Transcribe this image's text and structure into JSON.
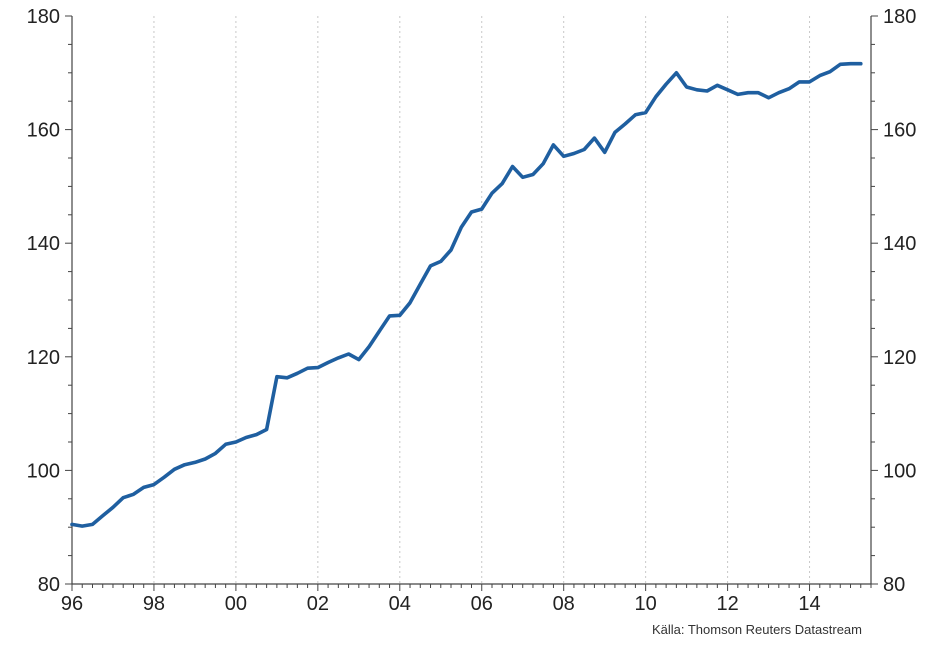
{
  "source": "Källa: Thomson Reuters Datastream",
  "chart_data": {
    "type": "line",
    "title": "",
    "xlabel": "",
    "ylabel": "",
    "xlim": [
      1996,
      2015.5
    ],
    "ylim": [
      80,
      180
    ],
    "y_ticks": [
      80,
      100,
      120,
      140,
      160,
      180
    ],
    "y_tick_labels": [
      "80",
      "100",
      "120",
      "140",
      "160",
      "180"
    ],
    "x_ticks": [
      1996,
      1998,
      2000,
      2002,
      2004,
      2006,
      2008,
      2010,
      2012,
      2014
    ],
    "x_tick_labels": [
      "96",
      "98",
      "00",
      "02",
      "04",
      "06",
      "08",
      "10",
      "12",
      "14"
    ],
    "grid": "vertical dotted",
    "axes": "left and right y-axes mirrored",
    "colors": {
      "line": "#1f5fa0",
      "grid": "#c8c8c8",
      "axis": "#444444"
    },
    "series": [
      {
        "x": [
          1996.0,
          1996.25,
          1996.5,
          1996.75,
          1997.0,
          1997.25,
          1997.5,
          1997.75,
          1998.0,
          1998.25,
          1998.5,
          1998.75,
          1999.0,
          1999.25,
          1999.5,
          1999.75,
          2000.0,
          2000.25,
          2000.5,
          2000.75,
          2001.0,
          2001.25,
          2001.5,
          2001.75,
          2002.0,
          2002.25,
          2002.5,
          2002.75,
          2003.0,
          2003.25,
          2003.5,
          2003.75,
          2004.0,
          2004.25,
          2004.5,
          2004.75,
          2005.0,
          2005.25,
          2005.5,
          2005.75,
          2006.0,
          2006.25,
          2006.5,
          2006.75,
          2007.0,
          2007.25,
          2007.5,
          2007.75,
          2008.0,
          2008.25,
          2008.5,
          2008.75,
          2009.0,
          2009.25,
          2009.5,
          2009.75,
          2010.0,
          2010.25,
          2010.5,
          2010.75,
          2011.0,
          2011.25,
          2011.5,
          2011.75,
          2012.0,
          2012.25,
          2012.5,
          2012.75,
          2013.0,
          2013.25,
          2013.5,
          2013.75,
          2014.0,
          2014.25,
          2014.5,
          2014.75,
          2015.0,
          2015.25
        ],
        "values": [
          90.5,
          90.2,
          90.5,
          92.0,
          93.5,
          95.2,
          95.8,
          97.0,
          97.5,
          98.8,
          100.2,
          101.0,
          101.4,
          102.0,
          103.0,
          104.6,
          105.0,
          105.8,
          106.3,
          107.2,
          116.5,
          116.3,
          117.1,
          118.0,
          118.1,
          119.0,
          119.8,
          120.5,
          119.5,
          121.8,
          124.5,
          127.2,
          127.3,
          129.5,
          132.8,
          136.0,
          136.8,
          138.8,
          142.8,
          145.5,
          146.0,
          148.8,
          150.5,
          153.5,
          151.6,
          152.1,
          154.0,
          157.3,
          155.3,
          155.8,
          156.5,
          158.5,
          156.0,
          159.5,
          161.0,
          162.6,
          163.0,
          165.8,
          168.0,
          170.0,
          167.5,
          167.0,
          166.8,
          167.8,
          167.0,
          166.2,
          166.5,
          166.5,
          165.6,
          166.5,
          167.2,
          168.4,
          168.4,
          169.5,
          170.2,
          171.5,
          171.6,
          171.6
        ]
      }
    ]
  }
}
